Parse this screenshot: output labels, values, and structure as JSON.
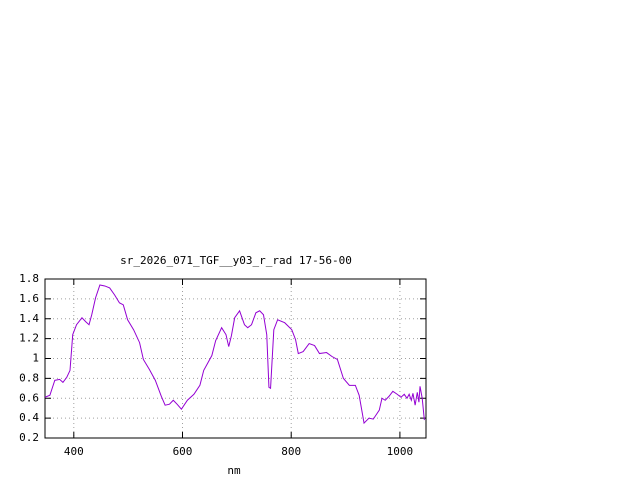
{
  "chart_data": {
    "type": "line",
    "title": "sr_2026_071_TGF__y03_r_rad 17-56-00",
    "x_label": "nm",
    "x": [
      347,
      356,
      365,
      374,
      380,
      387,
      393,
      398,
      405,
      415,
      422,
      428,
      433,
      440,
      448,
      457,
      466,
      475,
      484,
      491,
      499,
      510,
      521,
      528,
      539,
      550,
      561,
      568,
      576,
      583,
      590,
      598,
      609,
      621,
      632,
      639,
      647,
      654,
      661,
      672,
      680,
      685,
      690,
      696,
      705,
      714,
      720,
      727,
      735,
      742,
      749,
      755,
      759,
      762,
      768,
      775,
      788,
      801,
      808,
      813,
      822,
      833,
      843,
      852,
      865,
      875,
      885,
      896,
      907,
      918,
      925,
      934,
      943,
      951,
      962,
      967,
      973,
      980,
      987,
      995,
      1002,
      1008,
      1013,
      1017,
      1021,
      1024,
      1028,
      1032,
      1035,
      1037,
      1041,
      1045
    ],
    "series": [
      {
        "color": "#9400d3",
        "values": [
          0.61,
          0.63,
          0.78,
          0.79,
          0.76,
          0.81,
          0.88,
          1.24,
          1.34,
          1.41,
          1.37,
          1.34,
          1.44,
          1.61,
          1.74,
          1.73,
          1.71,
          1.64,
          1.56,
          1.54,
          1.39,
          1.29,
          1.16,
          0.99,
          0.89,
          0.78,
          0.62,
          0.53,
          0.54,
          0.58,
          0.54,
          0.49,
          0.58,
          0.64,
          0.73,
          0.88,
          0.96,
          1.03,
          1.18,
          1.31,
          1.24,
          1.12,
          1.23,
          1.41,
          1.48,
          1.34,
          1.31,
          1.34,
          1.46,
          1.48,
          1.44,
          1.24,
          0.71,
          0.7,
          1.29,
          1.39,
          1.36,
          1.29,
          1.19,
          1.05,
          1.07,
          1.15,
          1.13,
          1.05,
          1.06,
          1.02,
          0.99,
          0.8,
          0.73,
          0.73,
          0.63,
          0.35,
          0.4,
          0.39,
          0.48,
          0.6,
          0.58,
          0.62,
          0.67,
          0.64,
          0.61,
          0.64,
          0.6,
          0.64,
          0.58,
          0.65,
          0.53,
          0.66,
          0.56,
          0.72,
          0.6,
          0.38
        ]
      }
    ],
    "xlim": [
      347,
      1048
    ],
    "xticks": [
      400,
      600,
      800,
      1000
    ],
    "ylim": [
      0.2,
      1.8
    ],
    "yticks": [
      0.2,
      0.4,
      0.6,
      0.8,
      1,
      1.2,
      1.4,
      1.6,
      1.8
    ],
    "grid": true
  }
}
